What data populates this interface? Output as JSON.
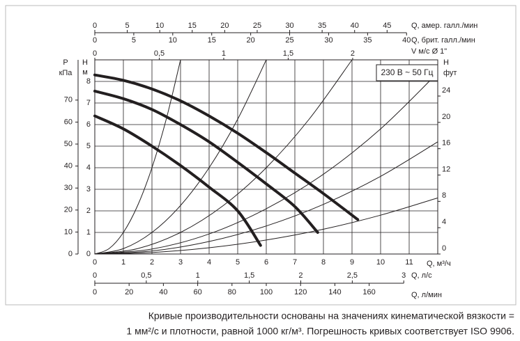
{
  "chart_data": {
    "type": "line",
    "xlabel": "Q, м³/ч",
    "xlim": [
      0,
      12
    ],
    "xticks": [
      0,
      1,
      2,
      3,
      4,
      5,
      6,
      7,
      8,
      9,
      10,
      11
    ],
    "ylabel": "H",
    "yunit": "м",
    "ylim": [
      0,
      9
    ],
    "yticks": [
      0,
      1,
      2,
      3,
      4,
      5,
      6,
      7,
      8
    ],
    "grid": true,
    "left_axis": {
      "label": "P",
      "unit": "кПа",
      "lim": [
        0,
        88.3
      ],
      "ticks": [
        0,
        10,
        20,
        30,
        40,
        50,
        60,
        70
      ]
    },
    "right_axis": {
      "label": "H",
      "unit": "фут",
      "lim": [
        0,
        29.5
      ],
      "ticks": [
        0,
        4,
        8,
        12,
        16,
        20,
        24
      ]
    },
    "top_axes": [
      {
        "label": "Q, амер. галл./мин",
        "lim": [
          0,
          52.8
        ],
        "ticks": [
          0,
          5,
          10,
          15,
          20,
          25,
          30,
          35,
          40,
          45
        ]
      },
      {
        "label": "Q, брит. галл./мин",
        "lim": [
          0,
          44.0
        ],
        "ticks": [
          0,
          5,
          10,
          15,
          20,
          25,
          30,
          35,
          40
        ]
      },
      {
        "label": "V м/с Ø 1\"",
        "lim": [
          0,
          2.66
        ],
        "ticks": [
          0,
          {
            "value": 0.5,
            "label": "0,5"
          },
          1,
          {
            "value": 1.5,
            "label": "1,5"
          },
          2
        ]
      }
    ],
    "bottom_axes": [
      {
        "label": "Q, л/с",
        "lim": [
          0,
          3.33
        ],
        "ticks": [
          0,
          {
            "value": 0.5,
            "label": "0,5"
          },
          1,
          {
            "value": 1.5,
            "label": "1,5"
          },
          2,
          {
            "value": 2.5,
            "label": "2,5"
          },
          3
        ]
      },
      {
        "label": "Q, л/мин",
        "lim": [
          0,
          200
        ],
        "ticks": [
          0,
          20,
          40,
          60,
          80,
          100,
          120,
          140,
          160
        ]
      }
    ],
    "annotation": "230 В ~ 50 Гц",
    "series": [
      {
        "color": "#231f20",
        "line_width": 1,
        "x": [
          0,
          0.5,
          1,
          1.5,
          2,
          2.5,
          3
        ],
        "values": [
          0,
          0.25,
          1,
          2.25,
          4,
          6.25,
          9
        ]
      },
      {
        "color": "#231f20",
        "line_width": 1,
        "x": [
          0,
          1,
          2,
          3,
          4,
          5,
          6
        ],
        "values": [
          0,
          0.25,
          1,
          2.25,
          4,
          6.25,
          9
        ]
      },
      {
        "color": "#231f20",
        "line_width": 1,
        "x": [
          0,
          1.5,
          3,
          4.5,
          6,
          7.5,
          9
        ],
        "values": [
          0,
          0.25,
          1,
          2.25,
          4,
          6.25,
          9
        ]
      },
      {
        "color": "#231f20",
        "line_width": 1,
        "x": [
          0,
          2,
          4,
          6,
          8,
          10,
          12
        ],
        "values": [
          0,
          0.23,
          0.93,
          2.1,
          3.7,
          5.8,
          8.4
        ]
      },
      {
        "color": "#231f20",
        "line_width": 1,
        "x": [
          0,
          2,
          4,
          6,
          8,
          10,
          12
        ],
        "values": [
          0,
          0.14,
          0.58,
          1.3,
          2.3,
          3.6,
          5.2
        ]
      },
      {
        "color": "#231f20",
        "line_width": 1,
        "x": [
          0,
          2,
          4,
          6,
          8,
          10,
          12
        ],
        "values": [
          0,
          0.07,
          0.29,
          0.65,
          1.15,
          1.8,
          2.6
        ]
      },
      {
        "color": "#231f20",
        "line_width": 4,
        "x": [
          0,
          1,
          2,
          3,
          4,
          5,
          6,
          7,
          8,
          9.2
        ],
        "values": [
          8.3,
          8.05,
          7.65,
          7.1,
          6.4,
          5.6,
          4.7,
          3.75,
          2.8,
          1.6
        ]
      },
      {
        "color": "#231f20",
        "line_width": 4,
        "x": [
          0,
          1,
          2,
          3,
          4,
          5,
          6,
          7,
          7.8
        ],
        "values": [
          7.55,
          7.2,
          6.7,
          6.0,
          5.2,
          4.25,
          3.25,
          2.2,
          1.0
        ]
      },
      {
        "color": "#231f20",
        "line_width": 4,
        "x": [
          0,
          1,
          2,
          3,
          4,
          5,
          5.8
        ],
        "values": [
          6.4,
          5.8,
          5.0,
          4.1,
          3.1,
          2.0,
          0.4
        ]
      }
    ]
  },
  "caption": [
    "Кривые производительности основаны на значениях кинематической вязкости =",
    "1 мм²/с и плотности, равной 1000 кг/м³. Погрешность кривых соответствует ISO 9906."
  ]
}
